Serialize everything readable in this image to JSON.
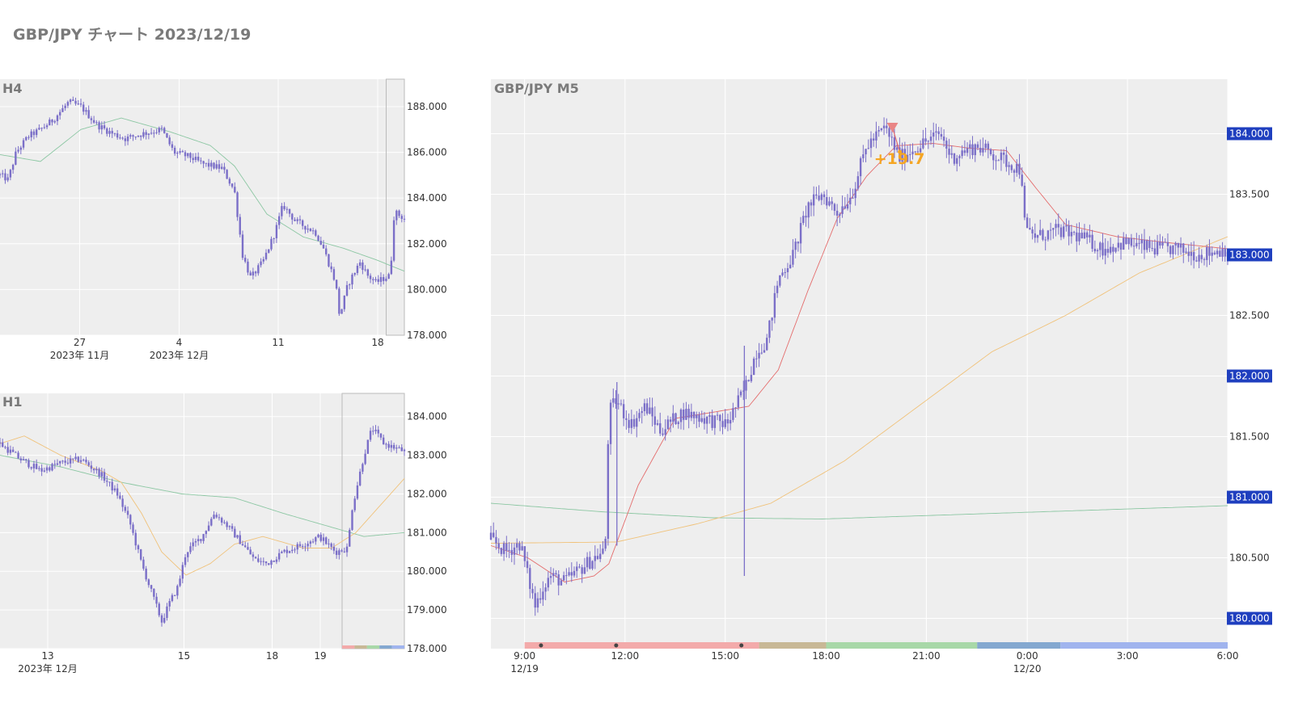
{
  "page": {
    "title": "GBP/JPY チャート 2023/12/19"
  },
  "colors": {
    "plot_bg": "#eeeeee",
    "grid": "#ffffff",
    "candle": "#7b6fc8",
    "ma_green": "#8cc7a3",
    "ma_orange": "#f0c27a",
    "ma_red": "#e46c6c",
    "badge": "#1f3fbf",
    "annot": "#f5a623"
  },
  "chart_data": [
    {
      "id": "h4",
      "type": "candlestick",
      "label": "H4",
      "ylim": [
        178.0,
        189.2
      ],
      "y_ticks": [
        "188.000",
        "186.000",
        "184.000",
        "182.000",
        "180.000",
        "178.000"
      ],
      "y_tick_values": [
        188,
        186,
        184,
        182,
        180,
        178
      ],
      "x_ticks": [
        {
          "label": "27",
          "sub": "2023年 11月",
          "t": 0.197
        },
        {
          "label": "4",
          "sub": "2023年 12月",
          "t": 0.443
        },
        {
          "label": "11",
          "sub": "",
          "t": 0.688
        },
        {
          "label": "18",
          "sub": "",
          "t": 0.934
        }
      ],
      "highlight_window": [
        0.955,
        1.0
      ],
      "price_path": [
        [
          0,
          185.0
        ],
        [
          0.02,
          184.8
        ],
        [
          0.04,
          186.0
        ],
        [
          0.07,
          186.7
        ],
        [
          0.1,
          187.0
        ],
        [
          0.13,
          187.4
        ],
        [
          0.17,
          188.2
        ],
        [
          0.2,
          188.0
        ],
        [
          0.24,
          187.2
        ],
        [
          0.28,
          186.8
        ],
        [
          0.31,
          186.6
        ],
        [
          0.35,
          186.8
        ],
        [
          0.4,
          187.0
        ],
        [
          0.43,
          186.0
        ],
        [
          0.47,
          185.8
        ],
        [
          0.5,
          185.5
        ],
        [
          0.55,
          185.3
        ],
        [
          0.58,
          184.3
        ],
        [
          0.6,
          181.5
        ],
        [
          0.62,
          180.5
        ],
        [
          0.65,
          181.2
        ],
        [
          0.68,
          182.5
        ],
        [
          0.7,
          183.7
        ],
        [
          0.73,
          183.0
        ],
        [
          0.78,
          182.5
        ],
        [
          0.8,
          181.8
        ],
        [
          0.83,
          180.3
        ],
        [
          0.84,
          178.8
        ],
        [
          0.86,
          180.2
        ],
        [
          0.89,
          181.2
        ],
        [
          0.91,
          180.6
        ],
        [
          0.93,
          180.3
        ],
        [
          0.95,
          180.5
        ],
        [
          0.965,
          180.6
        ],
        [
          0.975,
          183.4
        ],
        [
          1.0,
          183.1
        ]
      ],
      "ma_green": [
        [
          0,
          185.9
        ],
        [
          0.1,
          185.6
        ],
        [
          0.2,
          187.0
        ],
        [
          0.3,
          187.5
        ],
        [
          0.42,
          186.9
        ],
        [
          0.52,
          186.3
        ],
        [
          0.58,
          185.4
        ],
        [
          0.66,
          183.3
        ],
        [
          0.75,
          182.3
        ],
        [
          0.85,
          181.8
        ],
        [
          0.93,
          181.3
        ],
        [
          1.0,
          180.8
        ]
      ]
    },
    {
      "id": "h1",
      "type": "candlestick",
      "label": "H1",
      "ylim": [
        178.0,
        184.6
      ],
      "y_ticks": [
        "184.000",
        "183.000",
        "182.000",
        "181.000",
        "180.000",
        "179.000",
        "178.000"
      ],
      "y_tick_values": [
        184,
        183,
        182,
        181,
        180,
        179,
        178
      ],
      "x_ticks": [
        {
          "label": "13",
          "sub": "2023年 12月",
          "t": 0.118
        },
        {
          "label": "15",
          "sub": "",
          "t": 0.455
        },
        {
          "label": "18",
          "sub": "",
          "t": 0.673
        },
        {
          "label": "19",
          "sub": "",
          "t": 0.792
        }
      ],
      "highlight_window": [
        0.846,
        1.0
      ],
      "price_path": [
        [
          0,
          183.3
        ],
        [
          0.05,
          182.9
        ],
        [
          0.1,
          182.6
        ],
        [
          0.15,
          182.8
        ],
        [
          0.2,
          182.9
        ],
        [
          0.25,
          182.5
        ],
        [
          0.29,
          182.0
        ],
        [
          0.32,
          181.3
        ],
        [
          0.35,
          180.2
        ],
        [
          0.38,
          179.3
        ],
        [
          0.4,
          178.7
        ],
        [
          0.42,
          179.2
        ],
        [
          0.44,
          179.6
        ],
        [
          0.46,
          180.5
        ],
        [
          0.5,
          180.9
        ],
        [
          0.53,
          181.5
        ],
        [
          0.56,
          181.2
        ],
        [
          0.6,
          180.7
        ],
        [
          0.63,
          180.3
        ],
        [
          0.66,
          180.2
        ],
        [
          0.7,
          180.5
        ],
        [
          0.75,
          180.7
        ],
        [
          0.79,
          180.9
        ],
        [
          0.83,
          180.5
        ],
        [
          0.86,
          180.6
        ],
        [
          0.87,
          181.6
        ],
        [
          0.9,
          183.0
        ],
        [
          0.92,
          183.7
        ],
        [
          0.95,
          183.3
        ],
        [
          1.0,
          183.1
        ]
      ],
      "ma_green": [
        [
          0,
          183.0
        ],
        [
          0.15,
          182.7
        ],
        [
          0.3,
          182.3
        ],
        [
          0.45,
          182.0
        ],
        [
          0.58,
          181.9
        ],
        [
          0.7,
          181.5
        ],
        [
          0.8,
          181.2
        ],
        [
          0.9,
          180.9
        ],
        [
          1.0,
          181.0
        ]
      ],
      "ma_orange": [
        [
          0,
          183.3
        ],
        [
          0.06,
          183.5
        ],
        [
          0.15,
          183.0
        ],
        [
          0.25,
          182.6
        ],
        [
          0.3,
          182.3
        ],
        [
          0.35,
          181.5
        ],
        [
          0.4,
          180.5
        ],
        [
          0.46,
          179.9
        ],
        [
          0.52,
          180.2
        ],
        [
          0.58,
          180.7
        ],
        [
          0.65,
          180.9
        ],
        [
          0.75,
          180.6
        ],
        [
          0.82,
          180.6
        ],
        [
          0.88,
          181.0
        ],
        [
          0.94,
          181.7
        ],
        [
          1.0,
          182.4
        ]
      ]
    },
    {
      "id": "m5",
      "type": "candlestick",
      "label": "GBP/JPY M5",
      "ylim": [
        179.75,
        184.45
      ],
      "y_ticks": [
        "184.000",
        "183.500",
        "183.000",
        "182.500",
        "182.000",
        "181.500",
        "181.000",
        "180.500",
        "180.000"
      ],
      "y_tick_values": [
        184.0,
        183.5,
        183.0,
        182.5,
        182.0,
        181.5,
        181.0,
        180.5,
        180.0
      ],
      "badged_ticks": [
        184.0,
        183.0,
        182.0,
        181.0,
        180.0
      ],
      "x_ticks": [
        {
          "label": "9:00",
          "sub": "12/19",
          "t": 0.0457
        },
        {
          "label": "12:00",
          "sub": "",
          "t": 0.182
        },
        {
          "label": "15:00",
          "sub": "",
          "t": 0.318
        },
        {
          "label": "18:00",
          "sub": "",
          "t": 0.455
        },
        {
          "label": "21:00",
          "sub": "",
          "t": 0.591
        },
        {
          "label": "0:00",
          "sub": "12/20",
          "t": 0.728
        },
        {
          "label": "3:00",
          "sub": "",
          "t": 0.864
        },
        {
          "label": "6:00",
          "sub": "",
          "t": 1.0
        }
      ],
      "price_path": [
        [
          0,
          180.65
        ],
        [
          0.02,
          180.55
        ],
        [
          0.04,
          180.62
        ],
        [
          0.05,
          180.35
        ],
        [
          0.06,
          180.1
        ],
        [
          0.07,
          180.25
        ],
        [
          0.08,
          180.35
        ],
        [
          0.1,
          180.3
        ],
        [
          0.12,
          180.4
        ],
        [
          0.14,
          180.5
        ],
        [
          0.155,
          180.55
        ],
        [
          0.16,
          181.7
        ],
        [
          0.17,
          181.8
        ],
        [
          0.19,
          181.6
        ],
        [
          0.21,
          181.75
        ],
        [
          0.23,
          181.55
        ],
        [
          0.26,
          181.7
        ],
        [
          0.29,
          181.65
        ],
        [
          0.32,
          181.6
        ],
        [
          0.345,
          181.9
        ],
        [
          0.36,
          182.2
        ],
        [
          0.375,
          182.3
        ],
        [
          0.39,
          182.8
        ],
        [
          0.41,
          183.0
        ],
        [
          0.43,
          183.4
        ],
        [
          0.45,
          183.5
        ],
        [
          0.47,
          183.35
        ],
        [
          0.49,
          183.5
        ],
        [
          0.51,
          183.9
        ],
        [
          0.535,
          184.05
        ],
        [
          0.555,
          183.8
        ],
        [
          0.58,
          183.9
        ],
        [
          0.61,
          184.0
        ],
        [
          0.625,
          183.8
        ],
        [
          0.64,
          183.85
        ],
        [
          0.66,
          183.9
        ],
        [
          0.69,
          183.8
        ],
        [
          0.72,
          183.7
        ],
        [
          0.725,
          183.2
        ],
        [
          0.74,
          183.15
        ],
        [
          0.77,
          183.2
        ],
        [
          0.8,
          183.15
        ],
        [
          0.83,
          183.05
        ],
        [
          0.86,
          183.1
        ],
        [
          0.9,
          183.05
        ],
        [
          0.93,
          183.05
        ],
        [
          0.96,
          183.0
        ],
        [
          1.0,
          183.05
        ]
      ],
      "ma_red": [
        [
          0,
          180.6
        ],
        [
          0.05,
          180.5
        ],
        [
          0.1,
          180.3
        ],
        [
          0.14,
          180.35
        ],
        [
          0.16,
          180.45
        ],
        [
          0.2,
          181.1
        ],
        [
          0.25,
          181.65
        ],
        [
          0.3,
          181.7
        ],
        [
          0.35,
          181.75
        ],
        [
          0.39,
          182.05
        ],
        [
          0.43,
          182.7
        ],
        [
          0.47,
          183.3
        ],
        [
          0.51,
          183.65
        ],
        [
          0.55,
          183.9
        ],
        [
          0.6,
          183.92
        ],
        [
          0.65,
          183.88
        ],
        [
          0.7,
          183.86
        ],
        [
          0.74,
          183.55
        ],
        [
          0.78,
          183.25
        ],
        [
          0.85,
          183.15
        ],
        [
          0.92,
          183.1
        ],
        [
          1.0,
          183.05
        ]
      ],
      "ma_orange": [
        [
          0,
          180.62
        ],
        [
          0.17,
          180.63
        ],
        [
          0.28,
          180.78
        ],
        [
          0.38,
          180.95
        ],
        [
          0.48,
          181.3
        ],
        [
          0.58,
          181.75
        ],
        [
          0.68,
          182.2
        ],
        [
          0.78,
          182.5
        ],
        [
          0.88,
          182.85
        ],
        [
          1.0,
          183.15
        ]
      ],
      "ma_green": [
        [
          0,
          180.95
        ],
        [
          0.15,
          180.88
        ],
        [
          0.3,
          180.83
        ],
        [
          0.45,
          180.82
        ],
        [
          0.6,
          180.85
        ],
        [
          0.75,
          180.88
        ],
        [
          0.9,
          180.91
        ],
        [
          1.0,
          180.93
        ]
      ],
      "session_bands": [
        {
          "from": 0.0457,
          "to": 0.364,
          "color": "#f3aaaa"
        },
        {
          "from": 0.364,
          "to": 0.455,
          "color": "#c8b896"
        },
        {
          "from": 0.455,
          "to": 0.66,
          "color": "#a8d8a8"
        },
        {
          "from": 0.66,
          "to": 0.773,
          "color": "#84a8d0"
        },
        {
          "from": 0.773,
          "to": 1.0,
          "color": "#a0b4ee"
        }
      ],
      "event_dots": [
        0.068,
        0.17,
        0.34
      ],
      "trade_marker": {
        "t": 0.545,
        "price": 184.05
      },
      "trade_exit": {
        "t": 0.555,
        "price": 183.85
      },
      "annotation": {
        "text": "+19.7",
        "t": 0.52,
        "price": 183.75
      }
    }
  ]
}
